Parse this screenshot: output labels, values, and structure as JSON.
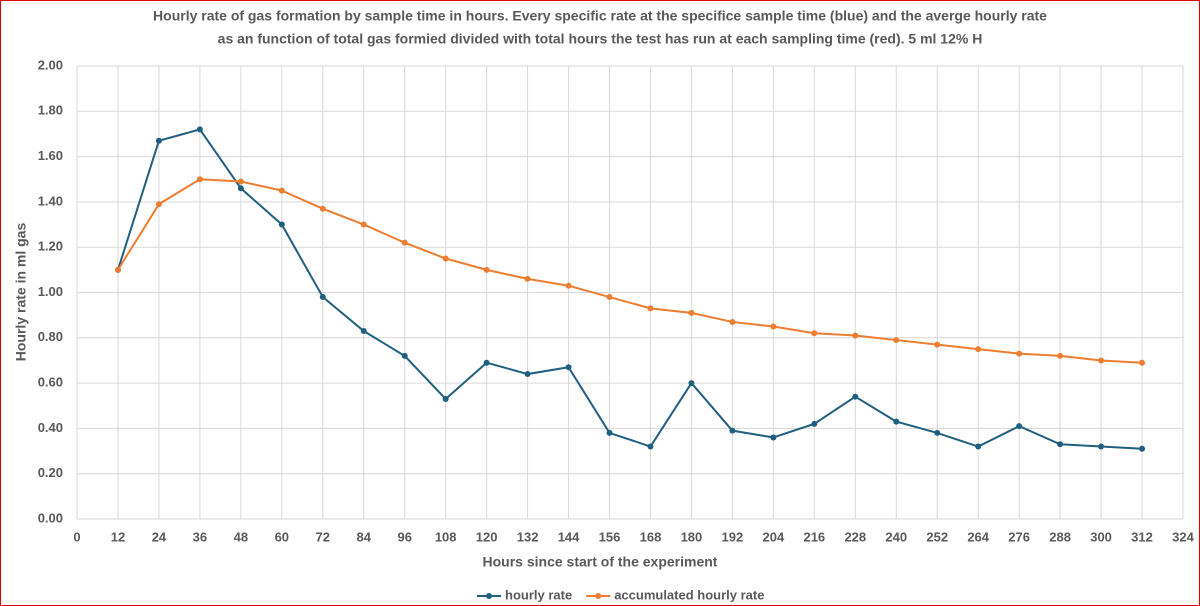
{
  "chart_data": {
    "type": "line",
    "title": [
      "Hourly rate of gas formation by sample time in hours. Every specific rate at the specifice sample time (blue)  and the averge hourly rate",
      "as an function of total gas formied divided with total hours the test has run at each sampling time (red). 5 ml 12% H"
    ],
    "x_label": "Hours since start of the experiment",
    "y_label": "Hourly rate in ml gas",
    "x": [
      12,
      24,
      36,
      48,
      60,
      72,
      84,
      96,
      108,
      120,
      132,
      144,
      156,
      168,
      180,
      192,
      204,
      216,
      228,
      240,
      252,
      264,
      276,
      288,
      300,
      312
    ],
    "series": [
      {
        "name": "hourly rate",
        "color": "#215f80",
        "values": [
          1.1,
          1.67,
          1.72,
          1.46,
          1.3,
          0.98,
          0.83,
          0.72,
          0.53,
          0.69,
          0.64,
          0.67,
          0.38,
          0.32,
          0.6,
          0.39,
          0.36,
          0.42,
          0.54,
          0.43,
          0.38,
          0.32,
          0.41,
          0.33,
          0.32,
          0.31
        ]
      },
      {
        "name": "accumulated hourly rate",
        "color": "#ed7d31",
        "values": [
          1.1,
          1.39,
          1.5,
          1.49,
          1.45,
          1.37,
          1.3,
          1.22,
          1.15,
          1.1,
          1.06,
          1.03,
          0.98,
          0.93,
          0.91,
          0.87,
          0.85,
          0.82,
          0.81,
          0.79,
          0.77,
          0.75,
          0.73,
          0.72,
          0.7,
          0.69
        ]
      }
    ],
    "xlim": [
      0,
      324
    ],
    "xticks": [
      0,
      12,
      24,
      36,
      48,
      60,
      72,
      84,
      96,
      108,
      120,
      132,
      144,
      156,
      168,
      180,
      192,
      204,
      216,
      228,
      240,
      252,
      264,
      276,
      288,
      300,
      312,
      324
    ],
    "ylim": [
      0,
      2
    ],
    "yticks": [
      {
        "value": 0,
        "label": "0.00"
      },
      {
        "value": 0.2,
        "label": "0.20"
      },
      {
        "value": 0.4,
        "label": "0.40"
      },
      {
        "value": 0.6,
        "label": "0.60"
      },
      {
        "value": 0.8,
        "label": "0.80"
      },
      {
        "value": 1,
        "label": "1.00"
      },
      {
        "value": 1.2,
        "label": "1.20"
      },
      {
        "value": 1.4,
        "label": "1.40"
      },
      {
        "value": 1.6,
        "label": "1.60"
      },
      {
        "value": 1.8,
        "label": "1.80"
      },
      {
        "value": 2,
        "label": "2.00"
      }
    ],
    "grid": true,
    "legend": "bottom"
  }
}
